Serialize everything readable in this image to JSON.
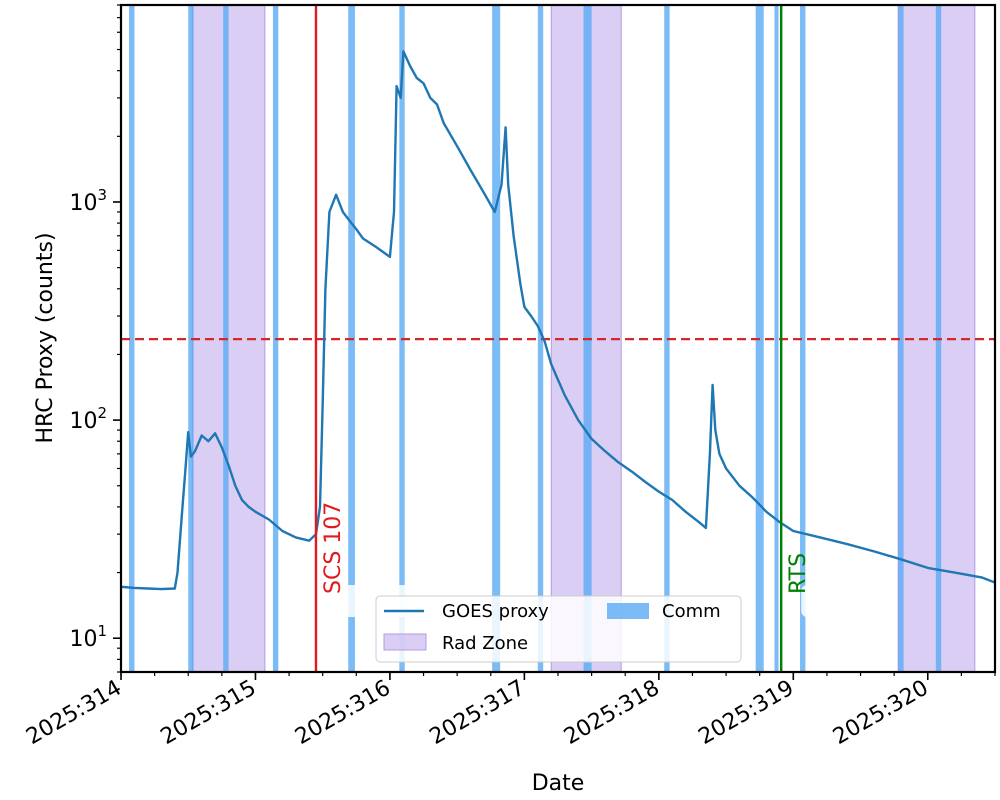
{
  "chart_data": {
    "type": "line",
    "ylabel": "HRC Proxy (counts)",
    "xlabel": "Date",
    "yscale": "log",
    "xlim": [
      314,
      320.5
    ],
    "ylim": [
      7,
      8000
    ],
    "x_ticks": [
      {
        "value": 314,
        "label": "2025:314"
      },
      {
        "value": 315,
        "label": "2025:315"
      },
      {
        "value": 316,
        "label": "2025:316"
      },
      {
        "value": 317,
        "label": "2025:317"
      },
      {
        "value": 318,
        "label": "2025:318"
      },
      {
        "value": 319,
        "label": "2025:319"
      },
      {
        "value": 320,
        "label": "2025:320"
      }
    ],
    "y_ticks": [
      {
        "value": 10,
        "base": "10",
        "exp": "1"
      },
      {
        "value": 100,
        "base": "10",
        "exp": "2"
      },
      {
        "value": 1000,
        "base": "10",
        "exp": "3"
      }
    ],
    "series": [
      {
        "name": "GOES proxy",
        "color": "#1f77b4",
        "points": [
          [
            314.0,
            17.2
          ],
          [
            314.1,
            17.0
          ],
          [
            314.2,
            16.9
          ],
          [
            314.3,
            16.8
          ],
          [
            314.4,
            16.9
          ],
          [
            314.42,
            20
          ],
          [
            314.45,
            35
          ],
          [
            314.48,
            60
          ],
          [
            314.5,
            88
          ],
          [
            314.52,
            68
          ],
          [
            314.55,
            72
          ],
          [
            314.6,
            85
          ],
          [
            314.65,
            80
          ],
          [
            314.7,
            87
          ],
          [
            314.75,
            75
          ],
          [
            314.8,
            62
          ],
          [
            314.85,
            50
          ],
          [
            314.9,
            43
          ],
          [
            314.95,
            40
          ],
          [
            315.0,
            38
          ],
          [
            315.1,
            35
          ],
          [
            315.2,
            31
          ],
          [
            315.3,
            29
          ],
          [
            315.4,
            28
          ],
          [
            315.45,
            30
          ],
          [
            315.48,
            40
          ],
          [
            315.5,
            120
          ],
          [
            315.52,
            400
          ],
          [
            315.55,
            900
          ],
          [
            315.6,
            1080
          ],
          [
            315.65,
            900
          ],
          [
            315.7,
            820
          ],
          [
            315.75,
            750
          ],
          [
            315.8,
            680
          ],
          [
            315.9,
            620
          ],
          [
            316.0,
            560
          ],
          [
            316.03,
            900
          ],
          [
            316.05,
            3400
          ],
          [
            316.08,
            3000
          ],
          [
            316.1,
            4900
          ],
          [
            316.15,
            4200
          ],
          [
            316.2,
            3700
          ],
          [
            316.25,
            3500
          ],
          [
            316.3,
            3000
          ],
          [
            316.35,
            2800
          ],
          [
            316.4,
            2300
          ],
          [
            316.5,
            1800
          ],
          [
            316.6,
            1400
          ],
          [
            316.7,
            1100
          ],
          [
            316.78,
            900
          ],
          [
            316.83,
            1200
          ],
          [
            316.86,
            2200
          ],
          [
            316.88,
            1200
          ],
          [
            316.92,
            700
          ],
          [
            316.97,
            420
          ],
          [
            317.0,
            330
          ],
          [
            317.05,
            300
          ],
          [
            317.1,
            270
          ],
          [
            317.15,
            230
          ],
          [
            317.2,
            180
          ],
          [
            317.3,
            130
          ],
          [
            317.4,
            100
          ],
          [
            317.5,
            82
          ],
          [
            317.6,
            72
          ],
          [
            317.7,
            64
          ],
          [
            317.8,
            58
          ],
          [
            317.9,
            52
          ],
          [
            318.0,
            47
          ],
          [
            318.1,
            43
          ],
          [
            318.2,
            38
          ],
          [
            318.3,
            34
          ],
          [
            318.35,
            32
          ],
          [
            318.38,
            70
          ],
          [
            318.4,
            145
          ],
          [
            318.42,
            90
          ],
          [
            318.45,
            70
          ],
          [
            318.5,
            60
          ],
          [
            318.6,
            50
          ],
          [
            318.7,
            44
          ],
          [
            318.8,
            38
          ],
          [
            318.9,
            34
          ],
          [
            319.0,
            31
          ],
          [
            319.2,
            29
          ],
          [
            319.4,
            27
          ],
          [
            319.6,
            25
          ],
          [
            319.8,
            23
          ],
          [
            320.0,
            21
          ],
          [
            320.2,
            20
          ],
          [
            320.4,
            19
          ],
          [
            320.5,
            18
          ]
        ]
      }
    ],
    "threshold": {
      "value": 235,
      "color": "#d62728",
      "style": "dashed"
    },
    "vertical_markers": [
      {
        "x": 315.45,
        "label": "SCS 107",
        "color": "#e31a1c"
      },
      {
        "x": 318.91,
        "label": "RTS",
        "color": "#008000"
      }
    ],
    "rad_zone": {
      "label": "Rad Zone",
      "color": "#c6b3ee",
      "intervals": [
        [
          314.53,
          315.07
        ],
        [
          317.2,
          317.72
        ],
        [
          319.78,
          320.35
        ]
      ]
    },
    "comm": {
      "label": "Comm",
      "color": "#5aabf5",
      "intervals": [
        [
          314.06,
          314.1
        ],
        [
          314.5,
          314.54
        ],
        [
          314.76,
          314.8
        ],
        [
          315.13,
          315.17
        ],
        [
          315.69,
          315.74
        ],
        [
          316.07,
          316.11
        ],
        [
          316.76,
          316.82
        ],
        [
          317.1,
          317.14
        ],
        [
          317.44,
          317.5
        ],
        [
          318.04,
          318.08
        ],
        [
          318.72,
          318.78
        ],
        [
          318.86,
          318.89
        ],
        [
          319.05,
          319.09
        ],
        [
          319.78,
          319.82
        ],
        [
          320.06,
          320.1
        ]
      ]
    },
    "legend": {
      "position": "lower-center",
      "entries": [
        "GOES proxy",
        "Comm",
        "Rad Zone"
      ]
    }
  }
}
